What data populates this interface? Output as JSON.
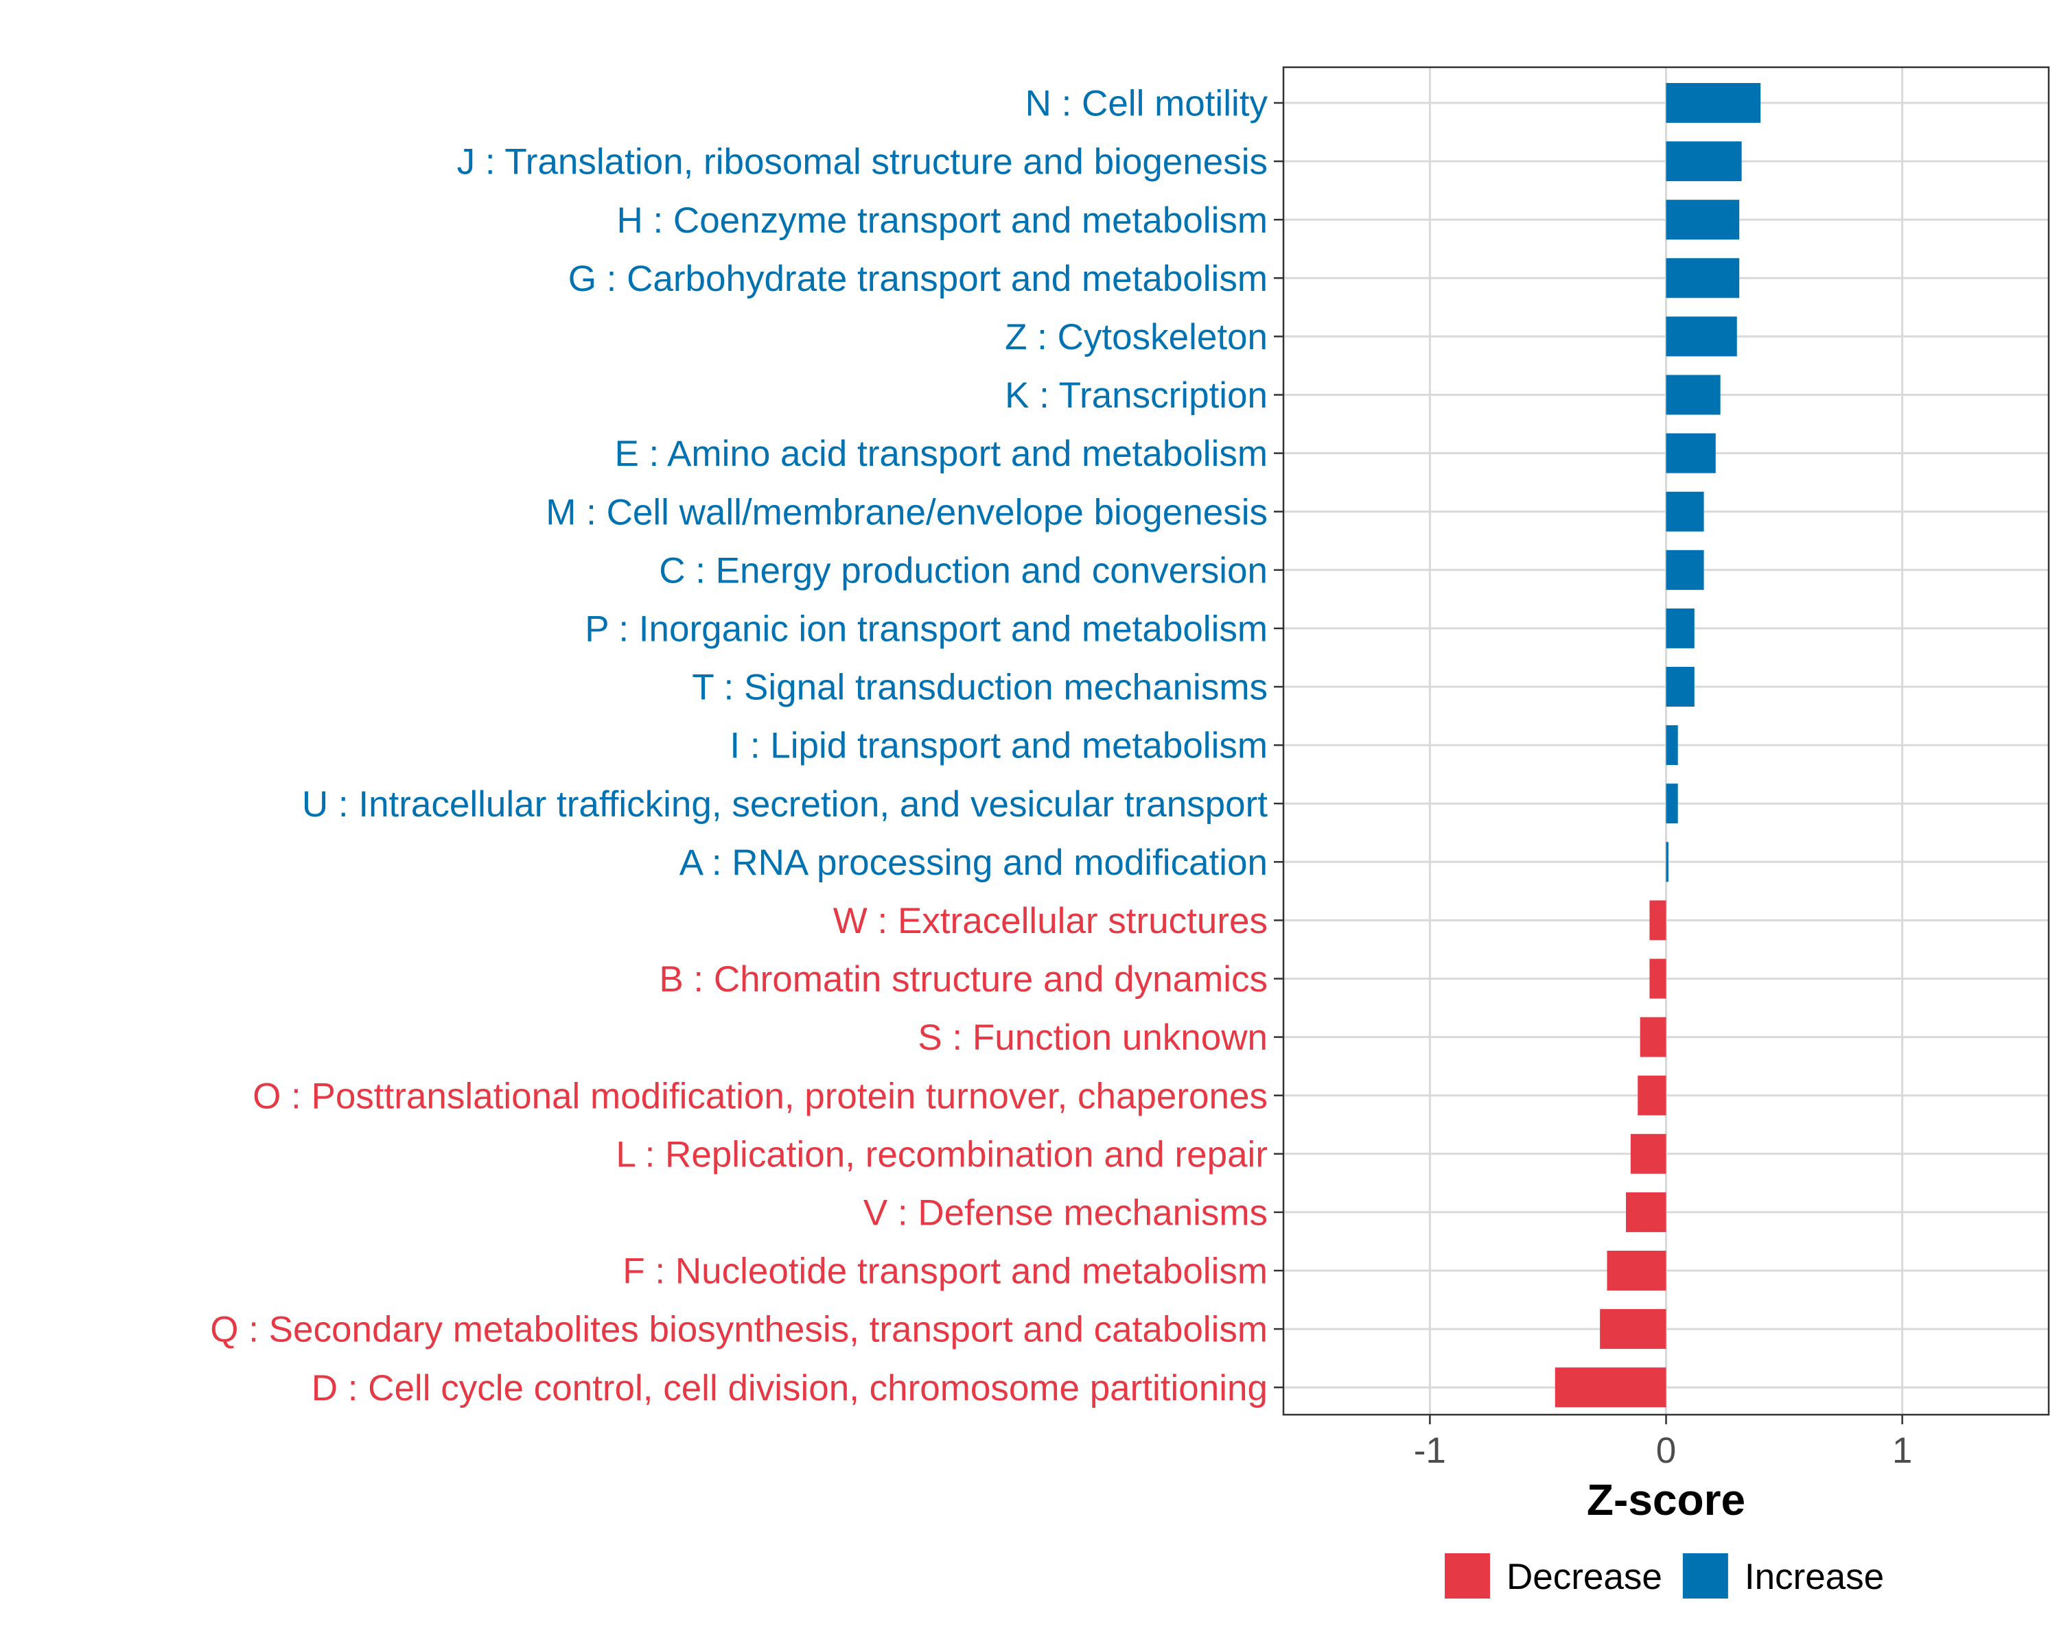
{
  "chart_data": {
    "type": "bar",
    "orientation": "horizontal",
    "xlabel": "Z-score",
    "ylabel": "",
    "xlim": [
      -1.62,
      1.62
    ],
    "xticks": [
      {
        "value": -1,
        "label": "-1"
      },
      {
        "value": 0,
        "label": "0"
      },
      {
        "value": 1,
        "label": "1"
      }
    ],
    "grid": true,
    "legend_position": "bottom",
    "colors": {
      "Increase": "#0072B2",
      "Decrease": "#E63946"
    },
    "legend": [
      {
        "key": "Decrease",
        "label": "Decrease"
      },
      {
        "key": "Increase",
        "label": "Increase"
      }
    ],
    "categories": [
      {
        "label": "N : Cell motility",
        "value": 0.4,
        "group": "Increase"
      },
      {
        "label": "J : Translation, ribosomal structure and biogenesis",
        "value": 0.32,
        "group": "Increase"
      },
      {
        "label": "H : Coenzyme transport and metabolism",
        "value": 0.31,
        "group": "Increase"
      },
      {
        "label": "G : Carbohydrate transport and metabolism",
        "value": 0.31,
        "group": "Increase"
      },
      {
        "label": "Z : Cytoskeleton",
        "value": 0.3,
        "group": "Increase"
      },
      {
        "label": "K : Transcription",
        "value": 0.23,
        "group": "Increase"
      },
      {
        "label": "E : Amino acid transport and metabolism",
        "value": 0.21,
        "group": "Increase"
      },
      {
        "label": "M : Cell wall/membrane/envelope biogenesis",
        "value": 0.16,
        "group": "Increase"
      },
      {
        "label": "C : Energy production and conversion",
        "value": 0.16,
        "group": "Increase"
      },
      {
        "label": "P : Inorganic ion transport and metabolism",
        "value": 0.12,
        "group": "Increase"
      },
      {
        "label": "T : Signal transduction mechanisms",
        "value": 0.12,
        "group": "Increase"
      },
      {
        "label": "I : Lipid transport and metabolism",
        "value": 0.05,
        "group": "Increase"
      },
      {
        "label": "U : Intracellular trafficking, secretion, and vesicular transport",
        "value": 0.05,
        "group": "Increase"
      },
      {
        "label": "A : RNA processing and modification",
        "value": 0.01,
        "group": "Increase"
      },
      {
        "label": "W : Extracellular structures",
        "value": -0.07,
        "group": "Decrease"
      },
      {
        "label": "B : Chromatin structure and dynamics",
        "value": -0.07,
        "group": "Decrease"
      },
      {
        "label": "S : Function unknown",
        "value": -0.11,
        "group": "Decrease"
      },
      {
        "label": "O : Posttranslational modification, protein turnover, chaperones",
        "value": -0.12,
        "group": "Decrease"
      },
      {
        "label": "L : Replication, recombination and repair",
        "value": -0.15,
        "group": "Decrease"
      },
      {
        "label": "V : Defense mechanisms",
        "value": -0.17,
        "group": "Decrease"
      },
      {
        "label": "F : Nucleotide transport and metabolism",
        "value": -0.25,
        "group": "Decrease"
      },
      {
        "label": "Q : Secondary metabolites biosynthesis, transport and catabolism",
        "value": -0.28,
        "group": "Decrease"
      },
      {
        "label": "D : Cell cycle control, cell division, chromosome partitioning",
        "value": -0.47,
        "group": "Decrease"
      }
    ]
  }
}
